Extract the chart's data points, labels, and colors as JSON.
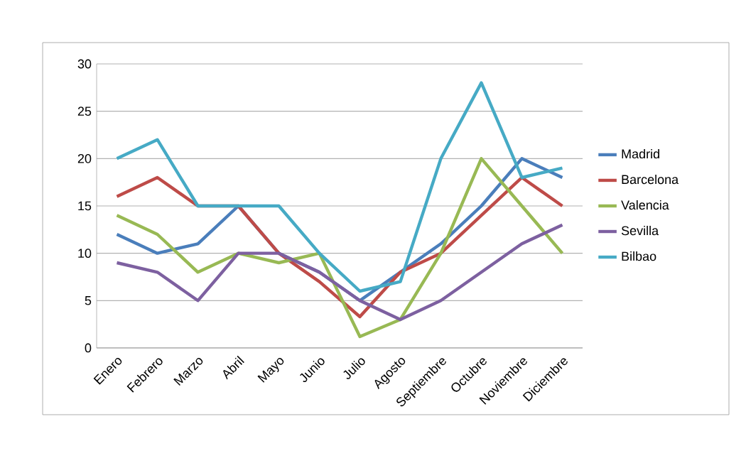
{
  "chart_data": {
    "type": "line",
    "categories": [
      "Enero",
      "Febrero",
      "Marzo",
      "Abril",
      "Mayo",
      "Junio",
      "Julio",
      "Agosto",
      "Septiembre",
      "Octubre",
      "Noviembre",
      "Diciembre"
    ],
    "series": [
      {
        "name": "Madrid",
        "color": "#4a7ebb",
        "values": [
          12,
          10,
          11,
          15,
          10,
          8,
          5,
          8,
          11,
          15,
          20,
          18
        ]
      },
      {
        "name": "Barcelona",
        "color": "#be4b48",
        "values": [
          16,
          18,
          15,
          15,
          10,
          7,
          3.3,
          8,
          10,
          14,
          18,
          15
        ]
      },
      {
        "name": "Valencia",
        "color": "#98b954",
        "values": [
          14,
          12,
          8,
          10,
          9,
          10,
          1.2,
          3,
          10,
          20,
          15,
          10
        ]
      },
      {
        "name": "Sevilla",
        "color": "#7d60a0",
        "values": [
          9,
          8,
          5,
          10,
          10,
          8,
          5,
          3,
          5,
          8,
          11,
          13
        ]
      },
      {
        "name": "Bilbao",
        "color": "#46aac5",
        "values": [
          20,
          22,
          15,
          15,
          15,
          10,
          6,
          7,
          20,
          28,
          18,
          19
        ]
      }
    ],
    "ylim": [
      0,
      30
    ],
    "yticks": [
      0,
      5,
      10,
      15,
      20,
      25,
      30
    ],
    "grid": "y",
    "legend": "right",
    "marker": "none",
    "line_style": "solid"
  }
}
